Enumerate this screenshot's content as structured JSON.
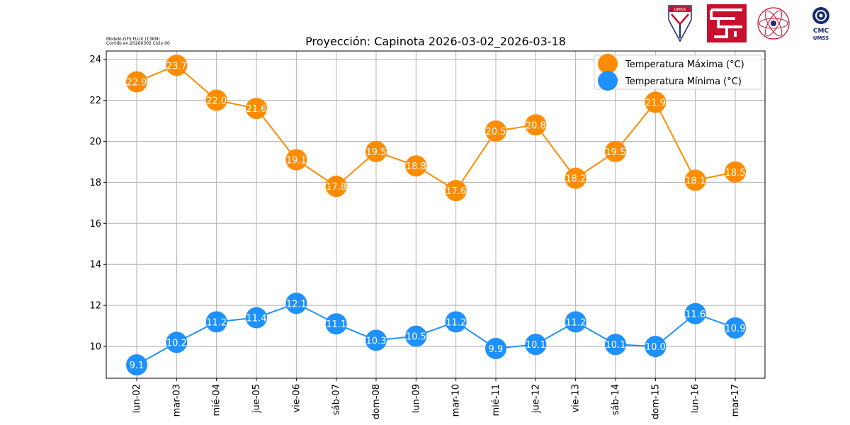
{
  "meta": {
    "model": "Modelo:GFS FLUX (13KM)",
    "run": "Corrido en:20260302 Ciclo:00"
  },
  "logos": [
    {
      "name": "umss-shield-logo",
      "text": "UMSS"
    },
    {
      "name": "red-emblem-logo"
    },
    {
      "name": "atomic-seal-logo"
    },
    {
      "name": "cmc-umss-logo",
      "text": "CMC UMSS"
    }
  ],
  "chart_data": {
    "type": "line",
    "title": "Proyección: Capinota 2026-03-02_2026-03-18",
    "xlabel": "",
    "ylabel": "",
    "categories": [
      "lun-02",
      "mar-03",
      "mié-04",
      "jue-05",
      "vie-06",
      "sáb-07",
      "dom-08",
      "lun-09",
      "mar-10",
      "mié-11",
      "jue-12",
      "vie-13",
      "sáb-14",
      "dom-15",
      "lun-16",
      "mar-17"
    ],
    "ylim": [
      8.45,
      24.4
    ],
    "yticks": [
      10,
      12,
      14,
      16,
      18,
      20,
      22,
      24
    ],
    "grid": true,
    "legend_position": "top-right",
    "series": [
      {
        "name": "Temperatura Máxima  (°C)",
        "color": "#ff8c00",
        "values": [
          22.9,
          23.7,
          22.0,
          21.6,
          19.1,
          17.8,
          19.5,
          18.8,
          17.6,
          20.5,
          20.8,
          18.2,
          19.5,
          21.9,
          18.1,
          18.5
        ],
        "labels": [
          "22.9",
          "23.7",
          "22.0",
          "21.6",
          "19.1",
          "17.8",
          "19.5",
          "18.8",
          "17.6",
          "20.5",
          "20.8",
          "18.2",
          "19.5",
          "21.9",
          "18.1",
          "18.5"
        ]
      },
      {
        "name": "Temperatura Mínima  (°C)",
        "color": "#1e90ff",
        "values": [
          9.1,
          10.2,
          11.2,
          11.4,
          12.1,
          11.1,
          10.3,
          10.5,
          11.2,
          9.9,
          10.1,
          11.2,
          10.1,
          10.0,
          11.6,
          10.9
        ],
        "labels": [
          "9.1",
          "10.2",
          "11.2",
          "11.4",
          "12.1",
          "11.1",
          "10.3",
          "10.5",
          "11.2",
          "9.9",
          "10.1",
          "11.2",
          "10.1",
          "10.0",
          "11.6",
          "10.9"
        ]
      }
    ]
  }
}
